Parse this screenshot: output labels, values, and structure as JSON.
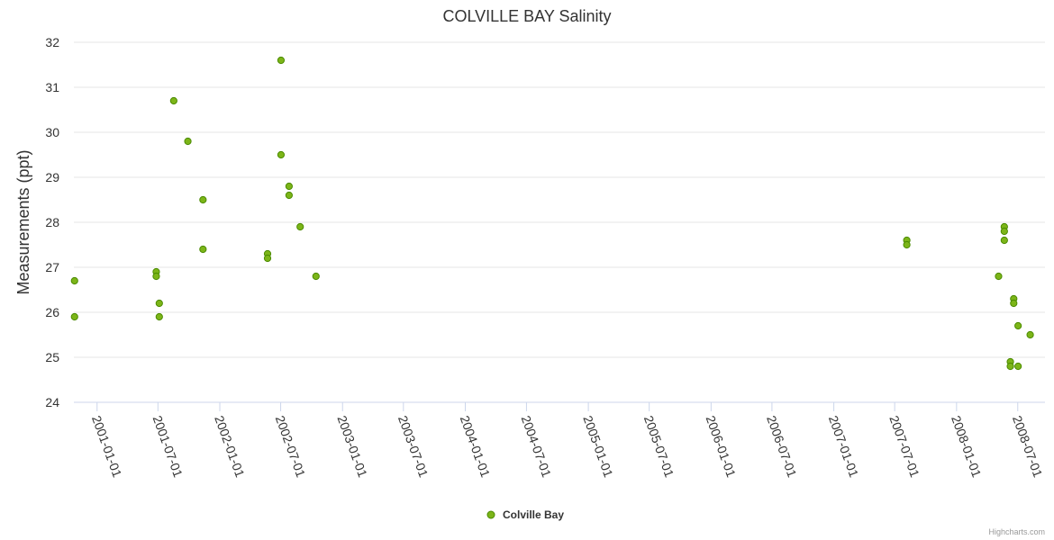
{
  "chart_data": {
    "type": "scatter",
    "title": "COLVILLE BAY Salinity",
    "xlabel": "",
    "ylabel": "Measurements (ppt)",
    "ylim": [
      24,
      32
    ],
    "yticks": [
      24,
      25,
      26,
      27,
      28,
      29,
      30,
      31,
      32
    ],
    "xlim": [
      "2000-10-24",
      "2008-09-20"
    ],
    "xticks": [
      "2001-01-01",
      "2001-07-01",
      "2002-01-01",
      "2002-07-01",
      "2003-01-01",
      "2003-07-01",
      "2004-01-01",
      "2004-07-01",
      "2005-01-01",
      "2005-07-01",
      "2006-01-01",
      "2006-07-01",
      "2007-01-01",
      "2007-07-01",
      "2008-01-01",
      "2008-07-01"
    ],
    "grid": true,
    "legend_position": "bottom-center",
    "colors": {
      "marker_fill": "#7cb518",
      "marker_stroke": "#4a8a00"
    },
    "series": [
      {
        "name": "Colville Bay",
        "points": [
          {
            "x": "2000-10-26",
            "y": 26.7
          },
          {
            "x": "2000-10-26",
            "y": 25.9
          },
          {
            "x": "2001-06-26",
            "y": 26.9
          },
          {
            "x": "2001-06-26",
            "y": 26.8
          },
          {
            "x": "2001-07-05",
            "y": 26.2
          },
          {
            "x": "2001-07-05",
            "y": 25.9
          },
          {
            "x": "2001-08-17",
            "y": 30.7
          },
          {
            "x": "2001-09-28",
            "y": 29.8
          },
          {
            "x": "2001-11-12",
            "y": 28.5
          },
          {
            "x": "2001-11-12",
            "y": 27.4
          },
          {
            "x": "2002-05-23",
            "y": 27.3
          },
          {
            "x": "2002-05-23",
            "y": 27.2
          },
          {
            "x": "2002-07-02",
            "y": 31.6
          },
          {
            "x": "2002-07-02",
            "y": 29.5
          },
          {
            "x": "2002-07-26",
            "y": 28.8
          },
          {
            "x": "2002-07-26",
            "y": 28.6
          },
          {
            "x": "2002-08-28",
            "y": 27.9
          },
          {
            "x": "2002-10-14",
            "y": 26.8
          },
          {
            "x": "2007-08-06",
            "y": 27.6
          },
          {
            "x": "2007-08-06",
            "y": 27.5
          },
          {
            "x": "2008-05-05",
            "y": 26.8
          },
          {
            "x": "2008-05-22",
            "y": 27.9
          },
          {
            "x": "2008-05-22",
            "y": 27.8
          },
          {
            "x": "2008-05-22",
            "y": 27.6
          },
          {
            "x": "2008-06-09",
            "y": 24.9
          },
          {
            "x": "2008-06-09",
            "y": 24.8
          },
          {
            "x": "2008-06-19",
            "y": 26.3
          },
          {
            "x": "2008-06-19",
            "y": 26.2
          },
          {
            "x": "2008-07-02",
            "y": 25.7
          },
          {
            "x": "2008-07-02",
            "y": 24.8
          },
          {
            "x": "2008-08-07",
            "y": 25.5
          }
        ]
      }
    ]
  },
  "credits": "Highcharts.com"
}
